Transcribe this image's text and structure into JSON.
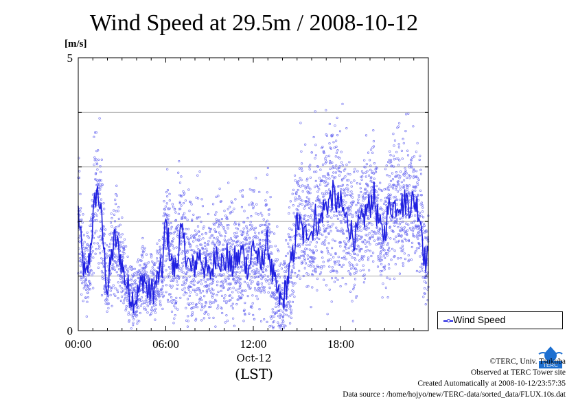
{
  "chart_data": {
    "type": "scatter",
    "title": "Wind Speed at 29.5m / 2008-10-12",
    "ylabel": "[m/s]",
    "xlabel_date": "Oct-12",
    "xlabel_unit": "(LST)",
    "ylim": [
      0,
      5
    ],
    "xlim_hours": [
      0,
      24
    ],
    "y_ticks": [
      "0",
      "5"
    ],
    "y_gridlines": [
      1,
      2,
      3,
      4
    ],
    "x_ticks": [
      {
        "hour": 0,
        "label": "00:00"
      },
      {
        "hour": 6,
        "label": "06:00"
      },
      {
        "hour": 12,
        "label": "12:00"
      },
      {
        "hour": 18,
        "label": "18:00"
      }
    ],
    "legend": "Wind Speed",
    "legend_position": "right",
    "series": [
      {
        "name": "Wind Speed",
        "color": "#2020e0",
        "point_color": "#6a6af0",
        "mean_hours": [
          0.0,
          0.25,
          0.5,
          0.75,
          1.0,
          1.25,
          1.5,
          1.75,
          2.0,
          2.25,
          2.5,
          2.75,
          3.0,
          3.25,
          3.5,
          3.75,
          4.0,
          4.25,
          4.5,
          4.75,
          5.0,
          5.25,
          5.5,
          5.75,
          6.0,
          6.25,
          6.5,
          6.75,
          7.0,
          7.25,
          7.5,
          7.75,
          8.0,
          8.25,
          8.5,
          8.75,
          9.0,
          9.25,
          9.5,
          9.75,
          10.0,
          10.25,
          10.5,
          10.75,
          11.0,
          11.25,
          11.5,
          11.75,
          12.0,
          12.25,
          12.5,
          12.75,
          13.0,
          13.25,
          13.5,
          13.75,
          14.0,
          14.25,
          14.5,
          14.75,
          15.0,
          15.25,
          15.5,
          15.75,
          16.0,
          16.25,
          16.5,
          16.75,
          17.0,
          17.25,
          17.5,
          17.75,
          18.0,
          18.25,
          18.5,
          18.75,
          19.0,
          19.25,
          19.5,
          19.75,
          20.0,
          20.25,
          20.5,
          20.75,
          21.0,
          21.25,
          21.5,
          21.75,
          22.0,
          22.25,
          22.5,
          22.75,
          23.0,
          23.25,
          23.5,
          23.75
        ],
        "mean_values": [
          2.2,
          1.4,
          0.9,
          1.3,
          2.0,
          2.6,
          2.3,
          1.5,
          0.7,
          1.3,
          1.7,
          1.5,
          1.2,
          0.9,
          0.7,
          0.6,
          0.6,
          0.8,
          1.0,
          0.7,
          0.7,
          0.8,
          1.0,
          1.1,
          2.0,
          1.5,
          1.1,
          1.2,
          1.8,
          1.6,
          1.3,
          1.1,
          1.2,
          1.4,
          1.3,
          1.1,
          1.0,
          1.2,
          1.5,
          1.3,
          1.2,
          1.4,
          1.1,
          1.3,
          1.3,
          1.5,
          1.2,
          1.2,
          1.6,
          1.4,
          1.1,
          1.5,
          1.6,
          1.1,
          0.8,
          0.6,
          0.5,
          0.8,
          1.1,
          1.4,
          2.0,
          1.9,
          1.7,
          1.9,
          1.8,
          2.1,
          1.9,
          2.2,
          2.3,
          2.4,
          2.5,
          2.3,
          2.3,
          2.1,
          2.0,
          1.8,
          1.7,
          1.9,
          2.0,
          2.2,
          2.3,
          2.5,
          2.1,
          1.8,
          1.8,
          2.2,
          2.3,
          2.3,
          2.4,
          2.3,
          2.4,
          2.3,
          2.4,
          2.3,
          2.0,
          1.3
        ]
      }
    ]
  },
  "legend": {
    "label": "Wind Speed"
  },
  "footer": {
    "copyright": "©TERC, Univ. Tsukuba",
    "observed": "Observed at TERC Tower site",
    "created": "Created Automatically at 2008-10-12/23:57:35",
    "source": "Data source : /home/hojyo/new/TERC-data/sorted_data/FLUX.10s.dat"
  },
  "logo": {
    "text": "TERC",
    "color": "#1d6fd0"
  }
}
